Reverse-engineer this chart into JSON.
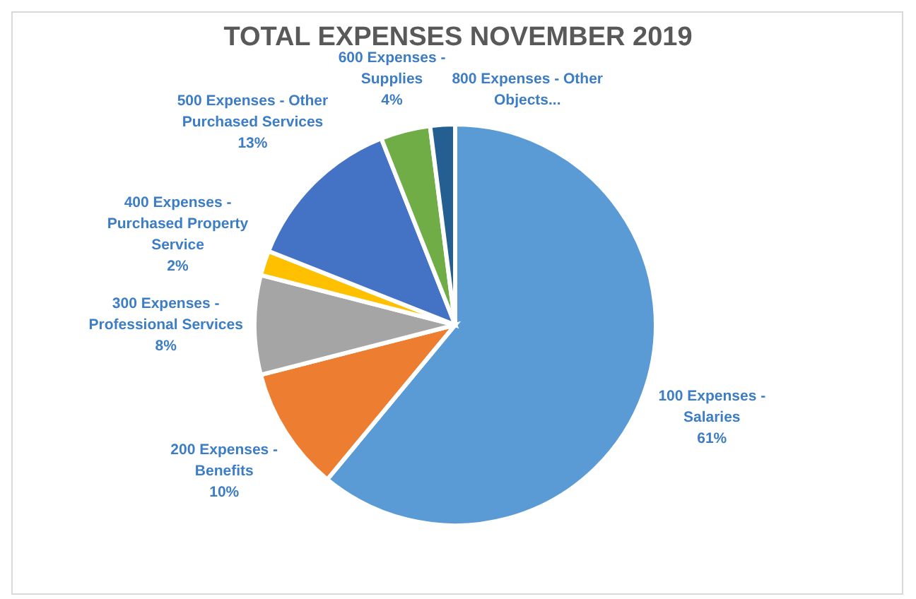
{
  "chart_data": {
    "type": "pie",
    "title": "TOTAL EXPENSES NOVEMBER 2019",
    "categories": [
      "100 Expenses - Salaries",
      "200 Expenses - Benefits",
      "300 Expenses - Professional Services",
      "400 Expenses - Purchased Property Service",
      "500 Expenses - Other Purchased Services",
      "600 Expenses - Supplies",
      "800 Expenses - Other Objects..."
    ],
    "values": [
      61,
      10,
      8,
      2,
      13,
      4,
      2
    ],
    "colors": [
      "#5b9bd5",
      "#ed7d31",
      "#a5a5a5",
      "#ffc000",
      "#4472c4",
      "#70ad47",
      "#255e91"
    ],
    "value_labels": [
      "61%",
      "10%",
      "8%",
      "2%",
      "13%",
      "4%",
      null
    ]
  }
}
